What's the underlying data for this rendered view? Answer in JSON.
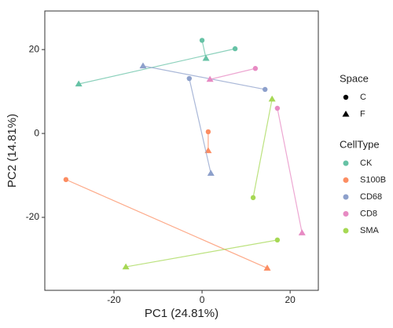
{
  "chart_data": {
    "type": "scatter",
    "xlabel": "PC1 (24.81%)",
    "ylabel": "PC2 (14.81%)",
    "xlim": [
      -35.7,
      26.4
    ],
    "ylim": [
      -37.4,
      29.2
    ],
    "xticks": [
      -20,
      0,
      20
    ],
    "yticks": [
      -20,
      0,
      20
    ],
    "grid": false,
    "shape_legend": {
      "title": "Space",
      "items": [
        "C",
        "F"
      ]
    },
    "color_legend_title": "CellType",
    "series": [
      {
        "name": "CK",
        "color": "#66c2a5",
        "x": [
          0,
          0.9,
          7.5,
          -28
        ],
        "y": [
          22.2,
          17.9,
          20.2,
          11.8
        ],
        "space": [
          "C",
          "F",
          "C",
          "F"
        ]
      },
      {
        "name": "S100B",
        "color": "#fc8d62",
        "x": [
          1.4,
          1.4,
          -30.9,
          14.8
        ],
        "y": [
          0.4,
          -4.1,
          -11.0,
          -32.1
        ],
        "space": [
          "C",
          "F",
          "C",
          "F"
        ]
      },
      {
        "name": "CD68",
        "color": "#8da0cb",
        "x": [
          -2.9,
          2,
          14.3,
          -13.4
        ],
        "y": [
          13.1,
          -9.5,
          10.5,
          16.1
        ],
        "space": [
          "C",
          "F",
          "C",
          "F"
        ]
      },
      {
        "name": "CD8",
        "color": "#e78ac3",
        "x": [
          12.1,
          1.8,
          17.1,
          22.7
        ],
        "y": [
          15.5,
          12.9,
          6.0,
          -23.7
        ],
        "space": [
          "C",
          "F",
          "C",
          "F"
        ]
      },
      {
        "name": "SMA",
        "color": "#a6d854",
        "x": [
          11.6,
          15.9,
          17.1,
          -17.3
        ],
        "y": [
          -15.3,
          8.2,
          -25.4,
          -31.8
        ],
        "space": [
          "C",
          "F",
          "C",
          "F"
        ]
      }
    ]
  }
}
